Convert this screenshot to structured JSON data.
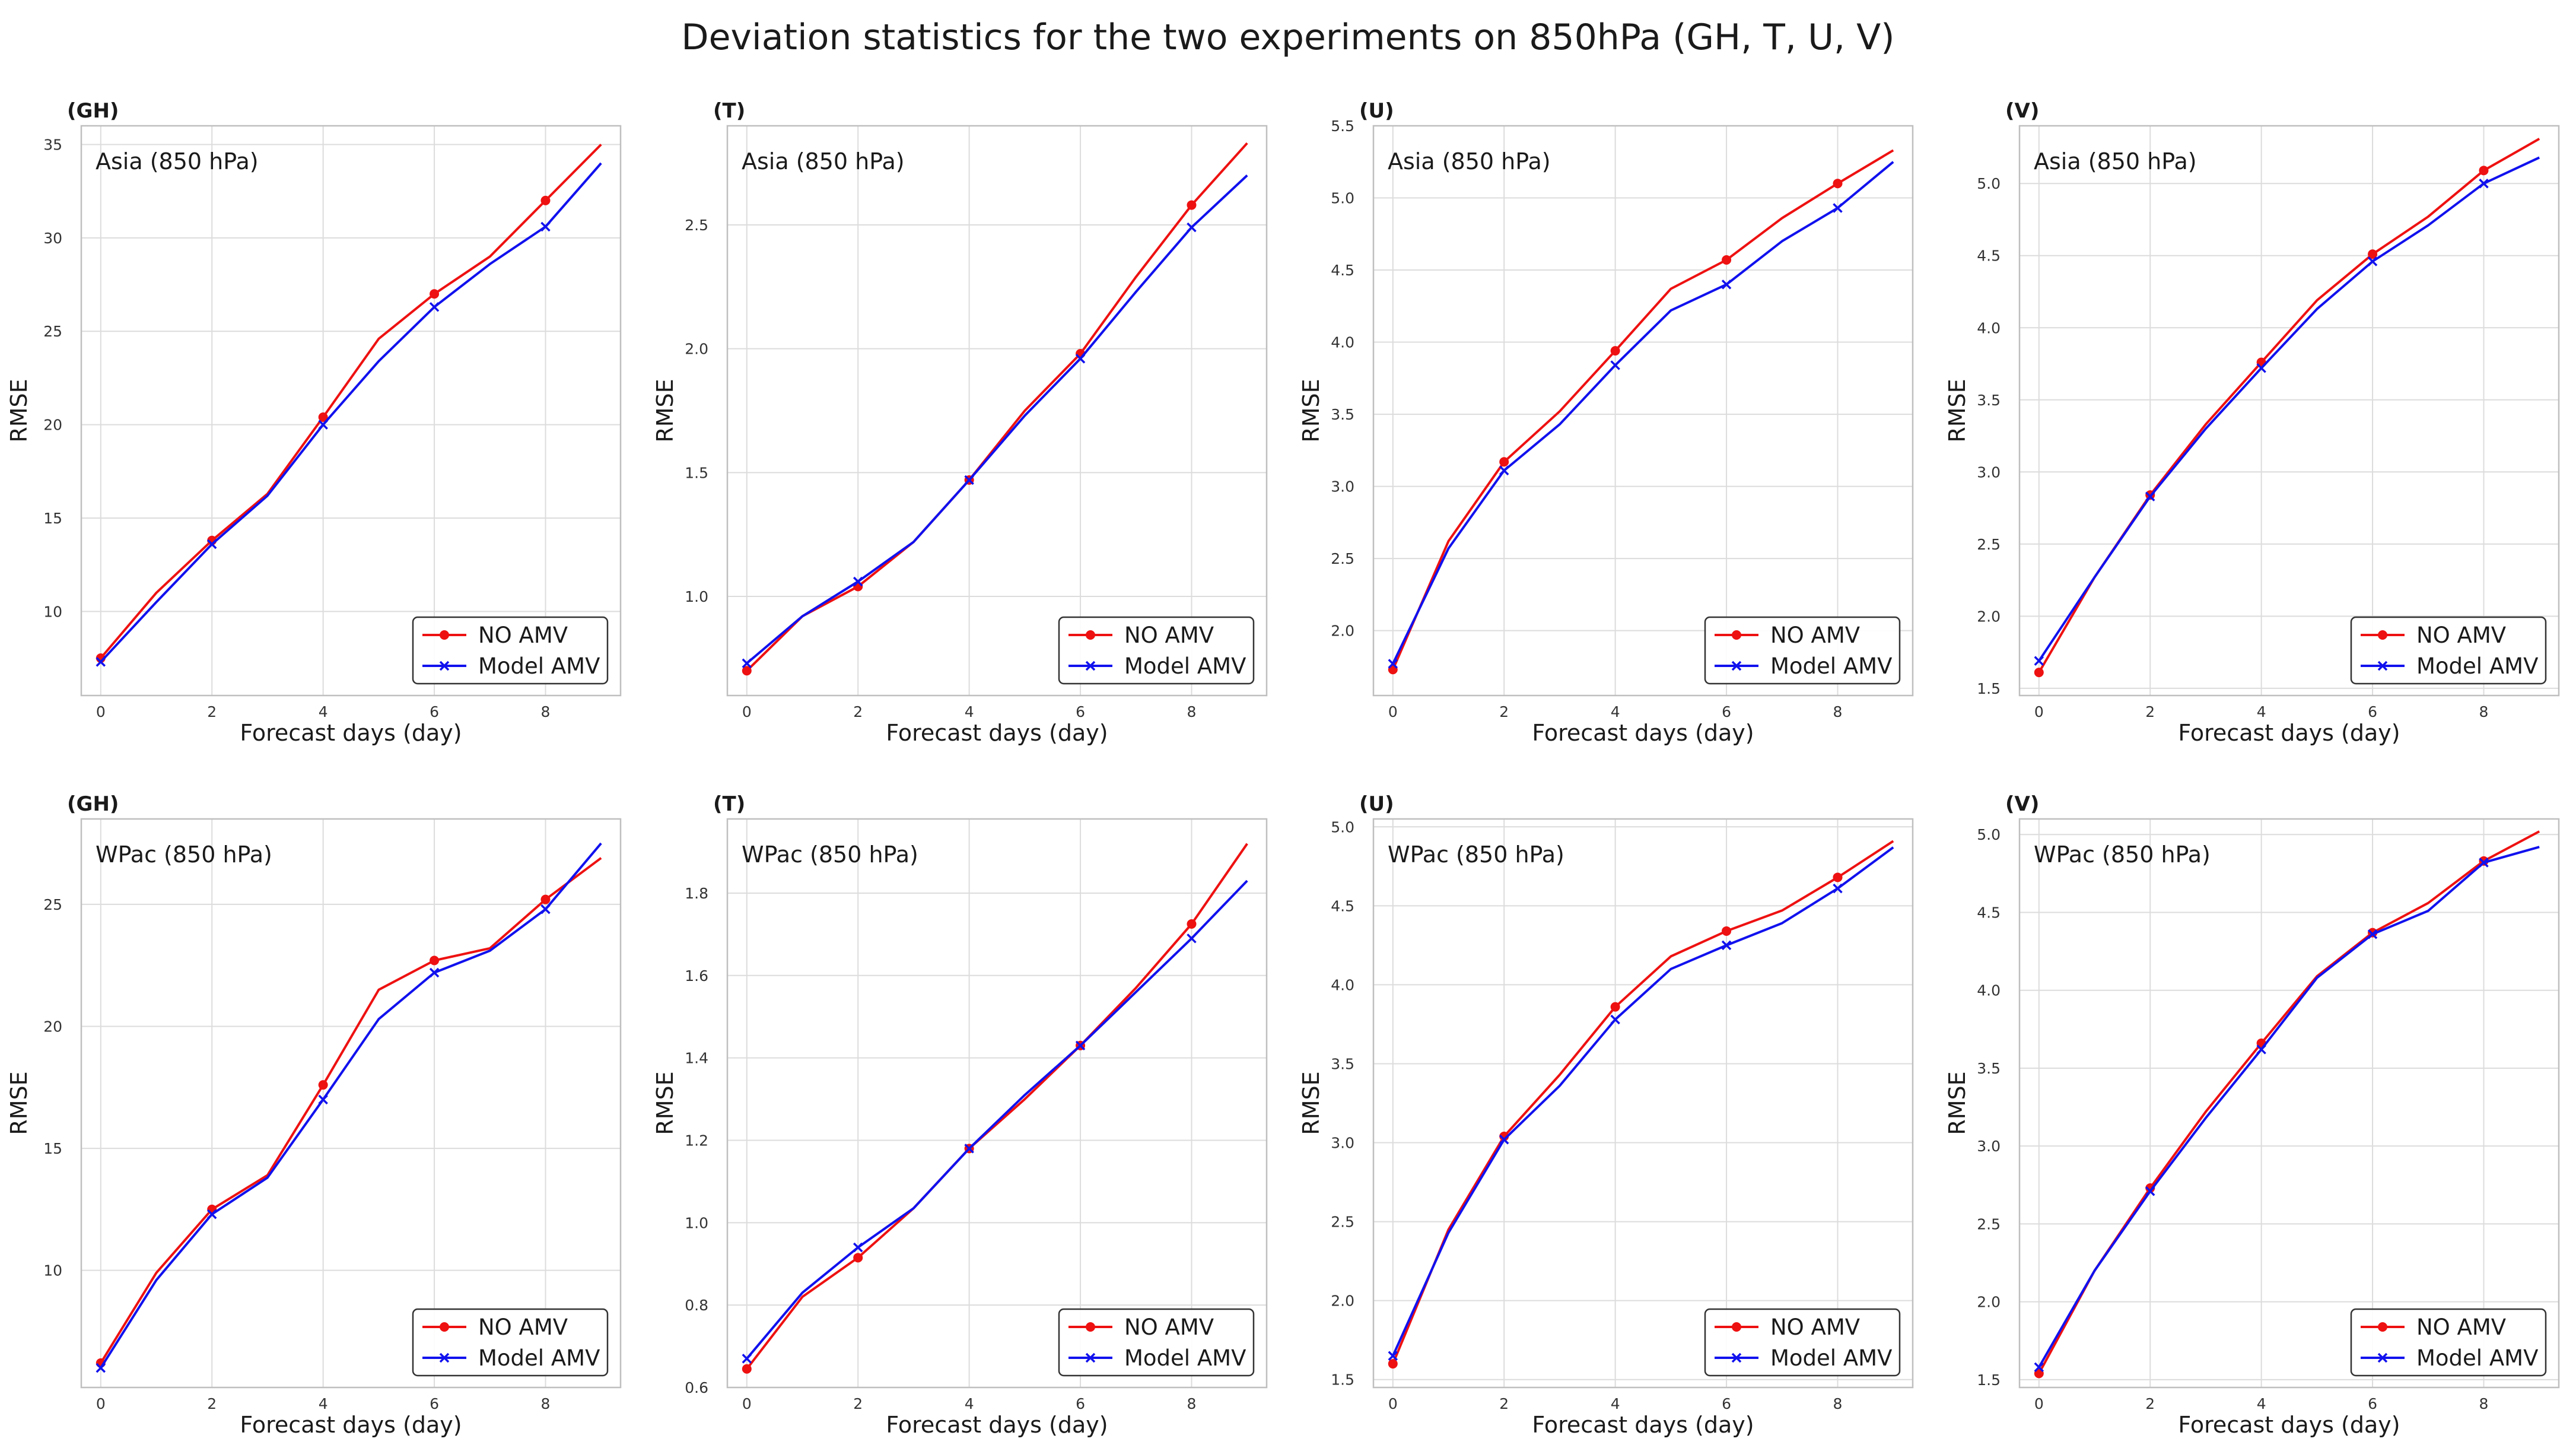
{
  "title": "Deviation statistics for the two experiments on 850hPa (GH, T, U, V)",
  "colors": {
    "no_amv": "#ee1111",
    "model_amv": "#1111ee",
    "grid": "#dcdcdc",
    "axis": "#bfbfbf"
  },
  "chart_data": [
    {
      "type": "line",
      "panel_label": "(GH)",
      "region": "Asia (850 hPa)",
      "xlabel": "Forecast days (day)",
      "ylabel": "RMSE",
      "xlim": [
        -0.35,
        9.35
      ],
      "ylim": [
        5.5,
        36
      ],
      "xticks": [
        0,
        2,
        4,
        6,
        8
      ],
      "yticks": [
        10,
        15,
        20,
        25,
        30,
        35
      ],
      "ytick_labels": [
        "10",
        "15",
        "20",
        "25",
        "30",
        "35"
      ],
      "x": [
        0,
        1,
        2,
        3,
        4,
        5,
        6,
        7,
        8,
        9
      ],
      "series": [
        {
          "name": "NO AMV",
          "values": [
            7.5,
            11.0,
            13.8,
            16.3,
            20.4,
            24.6,
            27.0,
            29.0,
            32.0,
            35.0
          ]
        },
        {
          "name": "Model AMV",
          "values": [
            7.3,
            10.5,
            13.6,
            16.2,
            20.0,
            23.4,
            26.3,
            28.6,
            30.6,
            34.0
          ]
        }
      ]
    },
    {
      "type": "line",
      "panel_label": "(T)",
      "region": "Asia (850 hPa)",
      "xlabel": "Forecast days (day)",
      "ylabel": "RMSE",
      "xlim": [
        -0.35,
        9.35
      ],
      "ylim": [
        0.6,
        2.9
      ],
      "xticks": [
        0,
        2,
        4,
        6,
        8
      ],
      "yticks": [
        1.0,
        1.5,
        2.0,
        2.5
      ],
      "ytick_labels": [
        "1.0",
        "1.5",
        "2.0",
        "2.5"
      ],
      "x": [
        0,
        1,
        2,
        3,
        4,
        5,
        6,
        7,
        8,
        9
      ],
      "series": [
        {
          "name": "NO AMV",
          "values": [
            0.7,
            0.92,
            1.04,
            1.22,
            1.47,
            1.75,
            1.98,
            2.29,
            2.58,
            2.83
          ]
        },
        {
          "name": "Model AMV",
          "values": [
            0.73,
            0.92,
            1.06,
            1.22,
            1.47,
            1.73,
            1.96,
            2.23,
            2.49,
            2.7
          ]
        }
      ]
    },
    {
      "type": "line",
      "panel_label": "(U)",
      "region": "Asia (850 hPa)",
      "xlabel": "Forecast days (day)",
      "ylabel": "RMSE",
      "xlim": [
        -0.35,
        9.35
      ],
      "ylim": [
        1.55,
        5.5
      ],
      "xticks": [
        0,
        2,
        4,
        6,
        8
      ],
      "yticks": [
        2.0,
        2.5,
        3.0,
        3.5,
        4.0,
        4.5,
        5.0,
        5.5
      ],
      "ytick_labels": [
        "2.0",
        "2.5",
        "3.0",
        "3.5",
        "4.0",
        "4.5",
        "5.0",
        "5.5"
      ],
      "x": [
        0,
        1,
        2,
        3,
        4,
        5,
        6,
        7,
        8,
        9
      ],
      "series": [
        {
          "name": "NO AMV",
          "values": [
            1.73,
            2.62,
            3.17,
            3.52,
            3.94,
            4.37,
            4.57,
            4.86,
            5.1,
            5.33
          ]
        },
        {
          "name": "Model AMV",
          "values": [
            1.77,
            2.57,
            3.11,
            3.43,
            3.84,
            4.22,
            4.4,
            4.7,
            4.93,
            5.25
          ]
        }
      ]
    },
    {
      "type": "line",
      "panel_label": "(V)",
      "region": "Asia (850 hPa)",
      "xlabel": "Forecast days (day)",
      "ylabel": "RMSE",
      "xlim": [
        -0.35,
        9.35
      ],
      "ylim": [
        1.45,
        5.4
      ],
      "xticks": [
        0,
        2,
        4,
        6,
        8
      ],
      "yticks": [
        1.5,
        2.0,
        2.5,
        3.0,
        3.5,
        4.0,
        4.5,
        5.0
      ],
      "ytick_labels": [
        "1.5",
        "2.0",
        "2.5",
        "3.0",
        "3.5",
        "4.0",
        "4.5",
        "5.0"
      ],
      "x": [
        0,
        1,
        2,
        3,
        4,
        5,
        6,
        7,
        8,
        9
      ],
      "series": [
        {
          "name": "NO AMV",
          "values": [
            1.61,
            2.27,
            2.84,
            3.33,
            3.76,
            4.19,
            4.51,
            4.77,
            5.09,
            5.31
          ]
        },
        {
          "name": "Model AMV",
          "values": [
            1.69,
            2.27,
            2.83,
            3.3,
            3.72,
            4.13,
            4.46,
            4.71,
            5.0,
            5.18
          ]
        }
      ]
    },
    {
      "type": "line",
      "panel_label": "(GH)",
      "region": "WPac (850 hPa)",
      "xlabel": "Forecast days (day)",
      "ylabel": "RMSE",
      "xlim": [
        -0.35,
        9.35
      ],
      "ylim": [
        5.2,
        28.5
      ],
      "xticks": [
        0,
        2,
        4,
        6,
        8
      ],
      "yticks": [
        10,
        15,
        20,
        25
      ],
      "ytick_labels": [
        "10",
        "15",
        "20",
        "25"
      ],
      "x": [
        0,
        1,
        2,
        3,
        4,
        5,
        6,
        7,
        8,
        9
      ],
      "series": [
        {
          "name": "NO AMV",
          "values": [
            6.2,
            9.9,
            12.5,
            13.9,
            17.6,
            21.5,
            22.7,
            23.2,
            25.2,
            26.9
          ]
        },
        {
          "name": "Model AMV",
          "values": [
            6.0,
            9.6,
            12.3,
            13.8,
            17.0,
            20.3,
            22.2,
            23.1,
            24.8,
            27.5
          ]
        }
      ]
    },
    {
      "type": "line",
      "panel_label": "(T)",
      "region": "WPac (850 hPa)",
      "xlabel": "Forecast days (day)",
      "ylabel": "RMSE",
      "xlim": [
        -0.35,
        9.35
      ],
      "ylim": [
        0.6,
        1.98
      ],
      "xticks": [
        0,
        2,
        4,
        6,
        8
      ],
      "yticks": [
        0.6,
        0.8,
        1.0,
        1.2,
        1.4,
        1.6,
        1.8
      ],
      "ytick_labels": [
        "0.6",
        "0.8",
        "1.0",
        "1.2",
        "1.4",
        "1.6",
        "1.8"
      ],
      "x": [
        0,
        1,
        2,
        3,
        4,
        5,
        6,
        7,
        8,
        9
      ],
      "series": [
        {
          "name": "NO AMV",
          "values": [
            0.645,
            0.82,
            0.915,
            1.035,
            1.18,
            1.3,
            1.43,
            1.57,
            1.725,
            1.92
          ]
        },
        {
          "name": "Model AMV",
          "values": [
            0.67,
            0.83,
            0.94,
            1.035,
            1.18,
            1.31,
            1.43,
            1.56,
            1.69,
            1.83
          ]
        }
      ]
    },
    {
      "type": "line",
      "panel_label": "(U)",
      "region": "WPac (850 hPa)",
      "xlabel": "Forecast days (day)",
      "ylabel": "RMSE",
      "xlim": [
        -0.35,
        9.35
      ],
      "ylim": [
        1.45,
        5.05
      ],
      "xticks": [
        0,
        2,
        4,
        6,
        8
      ],
      "yticks": [
        1.5,
        2.0,
        2.5,
        3.0,
        3.5,
        4.0,
        4.5,
        5.0
      ],
      "ytick_labels": [
        "1.5",
        "2.0",
        "2.5",
        "3.0",
        "3.5",
        "4.0",
        "4.5",
        "5.0"
      ],
      "x": [
        0,
        1,
        2,
        3,
        4,
        5,
        6,
        7,
        8,
        9
      ],
      "series": [
        {
          "name": "NO AMV",
          "values": [
            1.6,
            2.45,
            3.04,
            3.43,
            3.86,
            4.18,
            4.34,
            4.47,
            4.68,
            4.91
          ]
        },
        {
          "name": "Model AMV",
          "values": [
            1.65,
            2.43,
            3.02,
            3.36,
            3.78,
            4.1,
            4.25,
            4.39,
            4.61,
            4.87
          ]
        }
      ]
    },
    {
      "type": "line",
      "panel_label": "(V)",
      "region": "WPac (850 hPa)",
      "xlabel": "Forecast days (day)",
      "ylabel": "RMSE",
      "xlim": [
        -0.35,
        9.35
      ],
      "ylim": [
        1.45,
        5.1
      ],
      "xticks": [
        0,
        2,
        4,
        6,
        8
      ],
      "yticks": [
        1.5,
        2.0,
        2.5,
        3.0,
        3.5,
        4.0,
        4.5,
        5.0
      ],
      "ytick_labels": [
        "1.5",
        "2.0",
        "2.5",
        "3.0",
        "3.5",
        "4.0",
        "4.5",
        "5.0"
      ],
      "x": [
        0,
        1,
        2,
        3,
        4,
        5,
        6,
        7,
        8,
        9
      ],
      "series": [
        {
          "name": "NO AMV",
          "values": [
            1.54,
            2.2,
            2.73,
            3.22,
            3.66,
            4.09,
            4.37,
            4.56,
            4.83,
            5.02
          ]
        },
        {
          "name": "Model AMV",
          "values": [
            1.58,
            2.2,
            2.71,
            3.18,
            3.62,
            4.08,
            4.36,
            4.51,
            4.82,
            4.92
          ]
        }
      ]
    }
  ]
}
